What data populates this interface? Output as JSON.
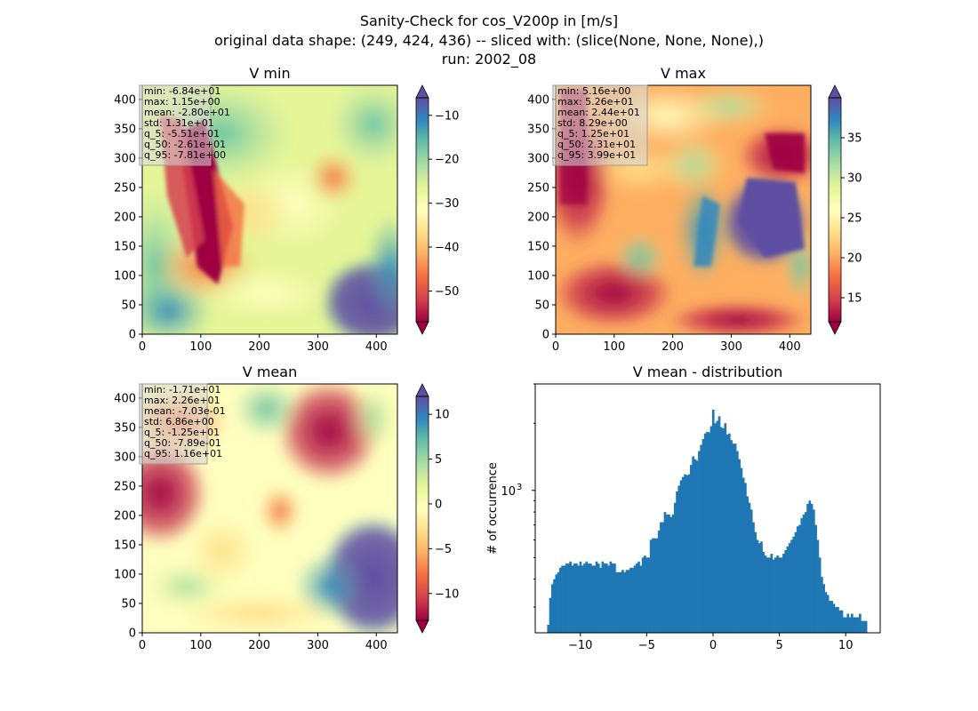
{
  "figure": {
    "suptitle_lines": [
      "Sanity-Check for cos_V200p in [m/s]",
      "original data shape: (249, 424, 436) -- sliced with: (slice(None, None, None),)",
      "run: 2002_08"
    ]
  },
  "colors": {
    "cmap": [
      "#9e0142",
      "#d53e4f",
      "#f46d43",
      "#fdae61",
      "#fee08b",
      "#ffffbf",
      "#e6f598",
      "#abdda4",
      "#66c2a5",
      "#3288bd",
      "#5e4fa2"
    ],
    "hist_bar": "#1f77b4",
    "stats_box": "#d9d9d9"
  },
  "chart_data": [
    {
      "type": "heatmap",
      "title": "V min",
      "xlim": [
        0,
        436
      ],
      "ylim": [
        0,
        424
      ],
      "xticks": [
        0,
        100,
        200,
        300,
        400
      ],
      "yticks": [
        0,
        50,
        100,
        150,
        200,
        250,
        300,
        350,
        400
      ],
      "colorbar": {
        "vmin": -57,
        "vmax": -6,
        "ticks": [
          -50,
          -40,
          -30,
          -20,
          -10
        ],
        "extend": "both"
      },
      "stats": [
        "min: -6.84e+01",
        "max: 1.15e+00",
        "mean: -2.80e+01",
        "std: 1.31e+01",
        "q_5: -5.51e+01",
        "q_50: -2.61e+01",
        "q_95: -7.81e+00"
      ]
    },
    {
      "type": "heatmap",
      "title": "V max",
      "xlim": [
        0,
        436
      ],
      "ylim": [
        0,
        424
      ],
      "xticks": [
        0,
        100,
        200,
        300,
        400
      ],
      "yticks": [
        0,
        50,
        100,
        150,
        200,
        250,
        300,
        350,
        400
      ],
      "colorbar": {
        "vmin": 12,
        "vmax": 40,
        "ticks": [
          15,
          20,
          25,
          30,
          35
        ],
        "extend": "both"
      },
      "stats": [
        "min: 5.16e+00",
        "max: 5.26e+01",
        "mean: 2.44e+01",
        "std: 8.29e+00",
        "q_5: 1.25e+01",
        "q_50: 2.31e+01",
        "q_95: 3.99e+01"
      ]
    },
    {
      "type": "heatmap",
      "title": "V mean",
      "xlim": [
        0,
        436
      ],
      "ylim": [
        0,
        424
      ],
      "xticks": [
        0,
        100,
        200,
        300,
        400
      ],
      "yticks": [
        0,
        50,
        100,
        150,
        200,
        250,
        300,
        350,
        400
      ],
      "colorbar": {
        "vmin": -13,
        "vmax": 12,
        "ticks": [
          -10,
          -5,
          0,
          5,
          10
        ],
        "extend": "both"
      },
      "stats": [
        "min: -1.71e+01",
        "max: 2.26e+01",
        "mean: -7.03e-01",
        "std: 6.86e+00",
        "q_5: -1.25e+01",
        "q_50: -7.89e-01",
        "q_95: 1.16e+01"
      ]
    },
    {
      "type": "bar",
      "title": "V mean - distribution",
      "ylabel": "# of occurrence",
      "yscale": "log",
      "xlim": [
        -13.4,
        12.6
      ],
      "ylim": [
        230,
        3000
      ],
      "xticks": [
        -10,
        -5,
        0,
        5,
        10
      ],
      "ytick_major": [
        {
          "value": 1000,
          "label": "10",
          "exp": "3"
        }
      ],
      "ytick_minor": [
        300,
        400,
        500,
        600,
        700,
        800,
        900,
        2000,
        3000
      ],
      "bins": [
        -12.5,
        11.6
      ],
      "counts": [
        250,
        330,
        380,
        400,
        420,
        430,
        450,
        460,
        460,
        470,
        470,
        480,
        460,
        470,
        470,
        460,
        480,
        460,
        470,
        480,
        470,
        470,
        460,
        460,
        480,
        470,
        450,
        480,
        470,
        470,
        460,
        480,
        470,
        470,
        430,
        430,
        430,
        440,
        430,
        440,
        440,
        450,
        450,
        460,
        470,
        480,
        460,
        500,
        510,
        500,
        500,
        600,
        610,
        610,
        610,
        660,
        720,
        720,
        800,
        780,
        780,
        760,
        780,
        880,
        990,
        1050,
        1110,
        1150,
        1180,
        1170,
        1180,
        1300,
        1420,
        1380,
        1360,
        1500,
        1600,
        1700,
        1800,
        1830,
        1820,
        1940,
        2300,
        2000,
        2050,
        2150,
        1920,
        1900,
        2000,
        1780,
        1800,
        1680,
        1620,
        1620,
        1500,
        1380,
        1260,
        1140,
        1080,
        940,
        880,
        820,
        720,
        650,
        600,
        580,
        590,
        530,
        510,
        500,
        500,
        520,
        490,
        500,
        510,
        500,
        500,
        520,
        540,
        560,
        580,
        600,
        620,
        650,
        690,
        700,
        750,
        780,
        800,
        870,
        900,
        870,
        820,
        700,
        600,
        500,
        410,
        380,
        350,
        340,
        320,
        320,
        310,
        300,
        300,
        290,
        290,
        270,
        270,
        280,
        270,
        280,
        270,
        270,
        270,
        280,
        260,
        260,
        260
      ]
    }
  ]
}
